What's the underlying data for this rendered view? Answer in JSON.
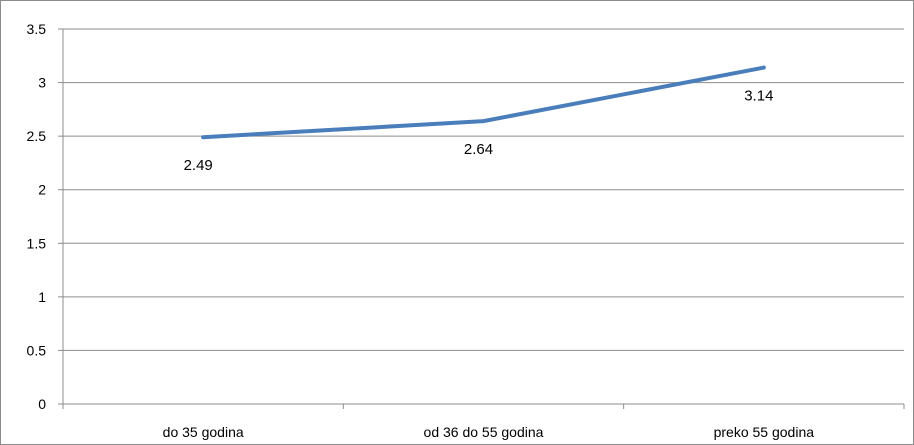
{
  "chart_data": {
    "type": "line",
    "categories": [
      "do 35 godina",
      "od 36 do 55 godina",
      "preko 55 godina"
    ],
    "series": [
      {
        "values": [
          2.49,
          2.64,
          3.14
        ],
        "color": "#4a7ebb"
      }
    ],
    "data_labels": [
      "2.49",
      "2.64",
      "3.14"
    ],
    "y_ticks": [
      "0",
      "0.5",
      "1",
      "1.5",
      "2",
      "2.5",
      "3",
      "3.5"
    ],
    "ylim": [
      0,
      3.5
    ],
    "grid": true,
    "legend": "none",
    "title": "",
    "xlabel": "",
    "ylabel": ""
  }
}
